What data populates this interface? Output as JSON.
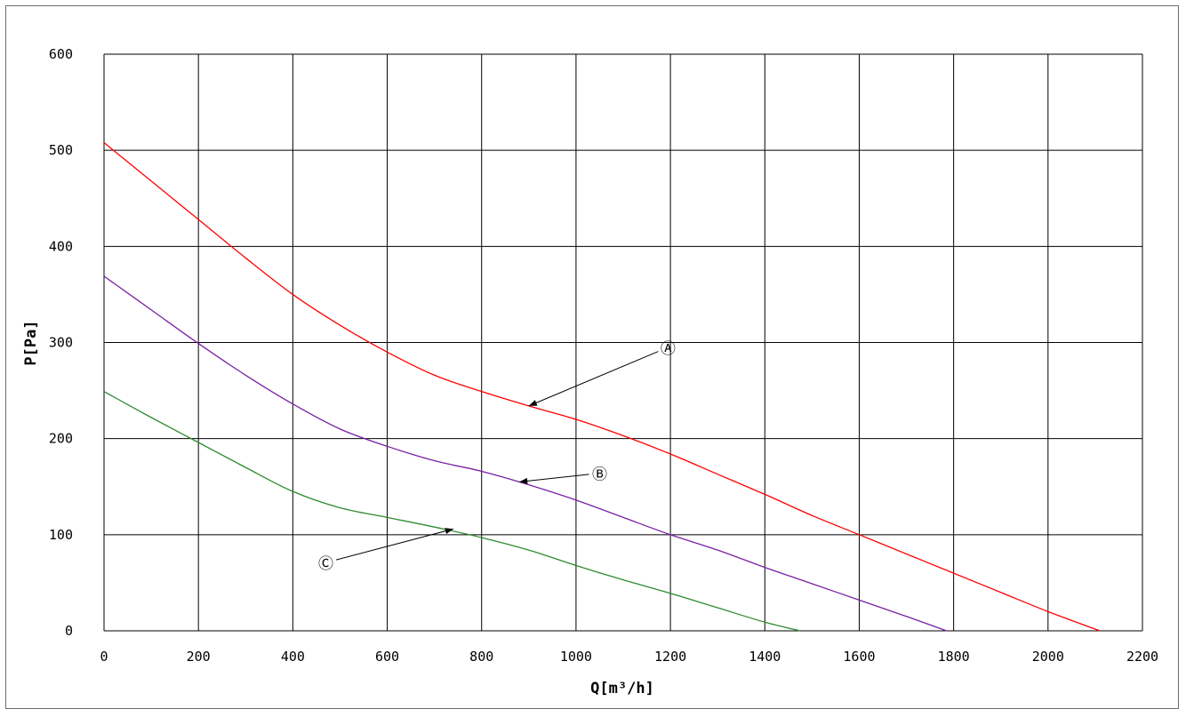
{
  "chart_data": {
    "type": "line",
    "xlabel": "Q[m³/h]",
    "ylabel": "P[Pa]",
    "xlim": [
      0,
      2200
    ],
    "ylim": [
      0,
      600
    ],
    "x_ticks": [
      0,
      200,
      400,
      600,
      800,
      1000,
      1200,
      1400,
      1600,
      1800,
      2000,
      2200
    ],
    "y_ticks": [
      0,
      100,
      200,
      300,
      400,
      500,
      600
    ],
    "grid": true,
    "legend": "none",
    "series": [
      {
        "name": "A",
        "color": "#ff0000",
        "points": [
          [
            0,
            508
          ],
          [
            100,
            468
          ],
          [
            200,
            428
          ],
          [
            300,
            388
          ],
          [
            400,
            350
          ],
          [
            500,
            318
          ],
          [
            600,
            290
          ],
          [
            700,
            266
          ],
          [
            800,
            249
          ],
          [
            900,
            234
          ],
          [
            1000,
            220
          ],
          [
            1100,
            203
          ],
          [
            1200,
            184
          ],
          [
            1300,
            163
          ],
          [
            1400,
            142
          ],
          [
            1500,
            120
          ],
          [
            1600,
            100
          ],
          [
            1700,
            80
          ],
          [
            1800,
            60
          ],
          [
            1900,
            40
          ],
          [
            2000,
            20
          ],
          [
            2110,
            0
          ]
        ]
      },
      {
        "name": "B",
        "color": "#7a1fa2",
        "points": [
          [
            0,
            369
          ],
          [
            100,
            334
          ],
          [
            200,
            299
          ],
          [
            300,
            266
          ],
          [
            400,
            236
          ],
          [
            500,
            210
          ],
          [
            600,
            192
          ],
          [
            700,
            177
          ],
          [
            800,
            166
          ],
          [
            900,
            152
          ],
          [
            1000,
            136
          ],
          [
            1100,
            118
          ],
          [
            1200,
            100
          ],
          [
            1300,
            84
          ],
          [
            1400,
            66
          ],
          [
            1500,
            49
          ],
          [
            1600,
            32
          ],
          [
            1700,
            15
          ],
          [
            1785,
            0
          ]
        ]
      },
      {
        "name": "C",
        "color": "#2e8b2e",
        "points": [
          [
            0,
            249
          ],
          [
            100,
            222
          ],
          [
            200,
            196
          ],
          [
            300,
            170
          ],
          [
            400,
            145
          ],
          [
            500,
            128
          ],
          [
            600,
            118
          ],
          [
            700,
            108
          ],
          [
            800,
            97
          ],
          [
            900,
            84
          ],
          [
            1000,
            68
          ],
          [
            1100,
            53
          ],
          [
            1200,
            39
          ],
          [
            1300,
            24
          ],
          [
            1400,
            9
          ],
          [
            1475,
            0
          ]
        ]
      }
    ],
    "annotations": [
      {
        "text": "Ⓐ",
        "series": "A",
        "point": [
          900,
          234
        ],
        "label_at": [
          1195,
          295
        ]
      },
      {
        "text": "Ⓑ",
        "series": "B",
        "point": [
          880,
          155
        ],
        "label_at": [
          1050,
          164
        ]
      },
      {
        "text": "Ⓒ",
        "series": "C",
        "point": [
          740,
          106
        ],
        "label_at": [
          470,
          71
        ]
      }
    ]
  }
}
